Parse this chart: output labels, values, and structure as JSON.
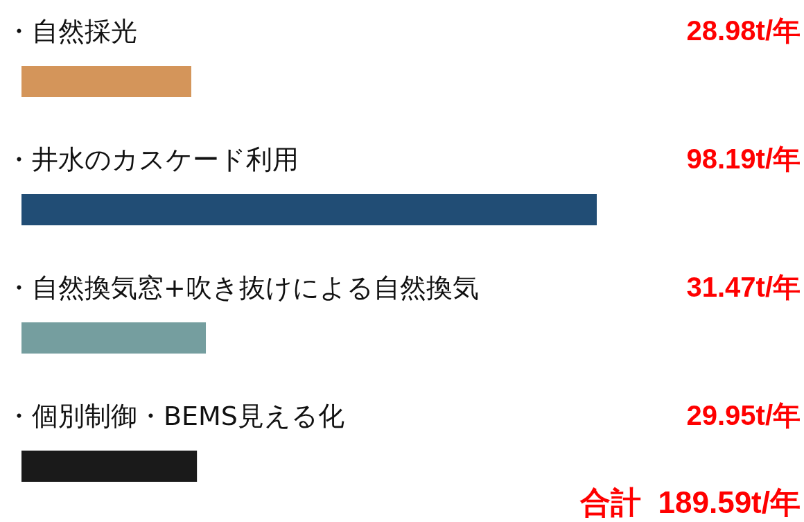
{
  "chart_data": {
    "type": "bar",
    "orientation": "horizontal",
    "categories": [
      "・自然採光",
      "・井水のカスケード利用",
      "・自然換気窓+吹き抜けによる自然換気",
      "・個別制御・BEMS見える化"
    ],
    "values": [
      28.98,
      98.19,
      31.47,
      29.95
    ],
    "colors": [
      "#d4955a",
      "#214d75",
      "#759e9f",
      "#1a1a1a"
    ],
    "value_labels": [
      "28.98t/年",
      "98.19t/年",
      "31.47t/年",
      "29.95t/年"
    ],
    "annotations": [
      "合計  189.59t/年"
    ]
  }
}
